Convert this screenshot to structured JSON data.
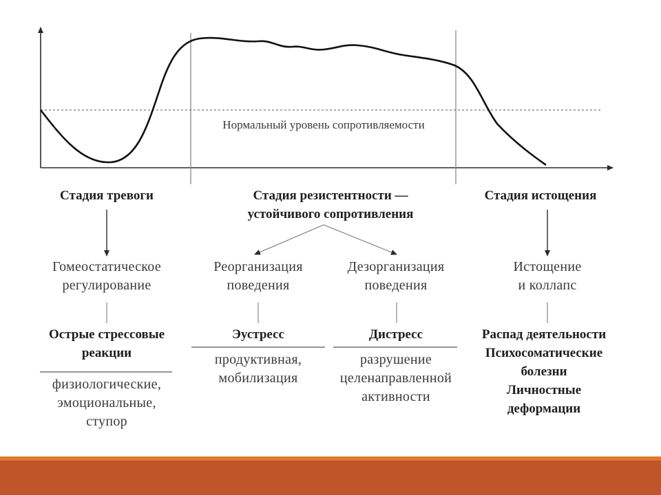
{
  "graph": {
    "normal_level_label": "Нормальный уровень сопротивляемости"
  },
  "stages": {
    "alarm": {
      "title": "Стадия тревоги",
      "reaction_lines": [
        "Гомеостатическое",
        "регулирование"
      ],
      "result_lines": [
        "Острые стрессовые",
        "реакции"
      ],
      "detail_lines": [
        "физиологические,",
        "эмоциональные,",
        "ступор"
      ]
    },
    "resistance": {
      "title_lines": [
        "Стадия резистентности —",
        "устойчивого сопротивления"
      ],
      "reorganization": {
        "lines": [
          "Реорганизация",
          "поведения"
        ],
        "result": "Эустресс",
        "detail_lines": [
          "продуктивная,",
          "мобилизация"
        ]
      },
      "disorganization": {
        "lines": [
          "Дезорганизация",
          "поведения"
        ],
        "result": "Дистресс",
        "detail_lines": [
          "разрушение",
          "целенаправленной",
          "активности"
        ]
      }
    },
    "exhaustion": {
      "title": "Стадия истощения",
      "reaction_lines": [
        "Истощение",
        "и коллапс"
      ],
      "result_lines": [
        "Распад деятельности",
        "Психосоматические",
        "болезни",
        "Личностные",
        "деформации"
      ]
    }
  },
  "colors": {
    "line": "#2b2b2b",
    "text": "#2a2a2a",
    "accent_bar": "#c0552a",
    "accent_bar_top": "#e07a2c"
  }
}
